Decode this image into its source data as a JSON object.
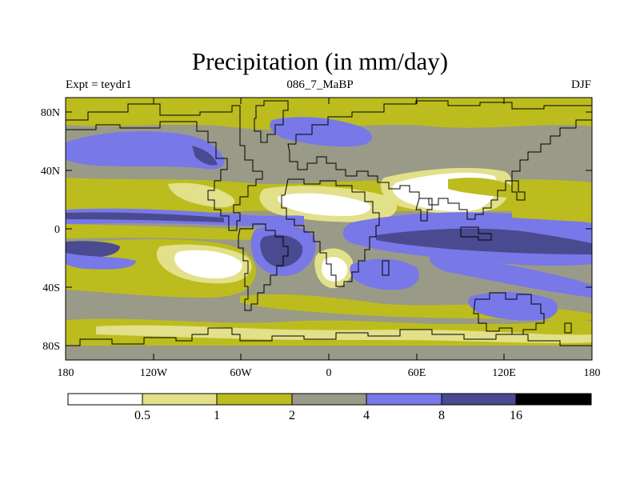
{
  "title": "Precipitation (in mm/day)",
  "experiment_label": "Expt = teydr1",
  "period_label": "086_7_MaBP",
  "season_label": "DJF",
  "lat_ticks": [
    "80N",
    "40N",
    "0",
    "40S",
    "80S"
  ],
  "lon_ticks": [
    "180",
    "120W",
    "60W",
    "0",
    "60E",
    "120E",
    "180"
  ],
  "colorbar": {
    "labels": [
      "0.5",
      "1",
      "2",
      "4",
      "8",
      "16"
    ],
    "colors": [
      "#ffffff",
      "#e2e08a",
      "#bcbc1e",
      "#9a9a88",
      "#7878e8",
      "#4a4a90",
      "#000000"
    ]
  }
}
